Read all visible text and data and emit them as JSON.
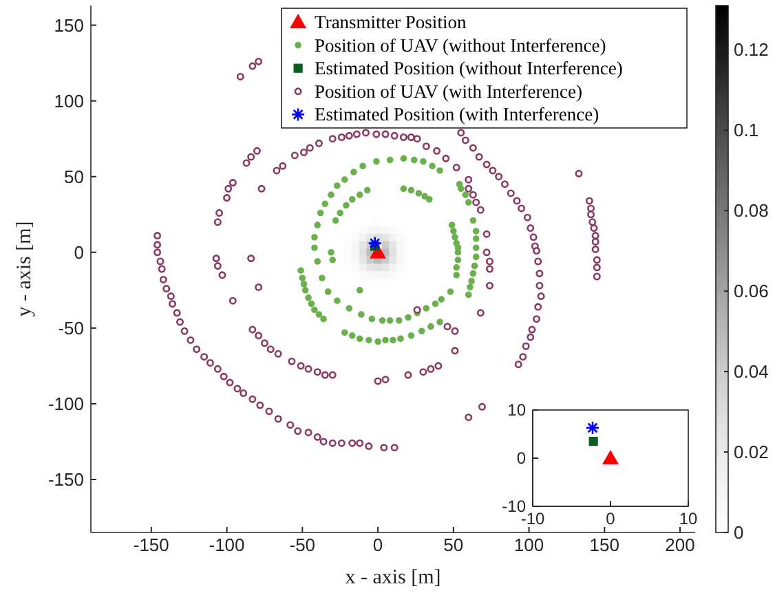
{
  "chart_data": [
    {
      "type": "heatmap",
      "categories": [
        null,
        null,
        null,
        null,
        null,
        null,
        null,
        null,
        null
      ],
      "y_categories": [
        null,
        null,
        null,
        null,
        null,
        null,
        null,
        null,
        null
      ],
      "clim": [
        0,
        0.131
      ],
      "cticks": [
        0,
        0.02,
        0.04,
        0.06,
        0.08,
        0.1,
        0.12
      ],
      "cells": [
        [
          0,
          0,
          0.001,
          0.002,
          0.003,
          0.002,
          0.001,
          0,
          0
        ],
        [
          0,
          0.002,
          0.005,
          0.009,
          0.01,
          0.009,
          0.005,
          0.002,
          0
        ],
        [
          0.001,
          0.005,
          0.013,
          0.023,
          0.027,
          0.023,
          0.013,
          0.005,
          0.001
        ],
        [
          0.002,
          0.009,
          0.023,
          0.041,
          null,
          0.041,
          0.023,
          0.009,
          0.002
        ],
        [
          0.003,
          0.01,
          0.027,
          0.049,
          null,
          0.049,
          0.027,
          0.01,
          0.003
        ],
        [
          0.002,
          0.009,
          0.023,
          0.041,
          0.049,
          0.041,
          0.023,
          0.009,
          0.002
        ],
        [
          0.001,
          0.005,
          0.013,
          0.023,
          0.027,
          0.023,
          0.013,
          0.005,
          0.001
        ],
        [
          0,
          0.002,
          0.005,
          0.009,
          0.01,
          0.009,
          0.005,
          0.002,
          0
        ],
        [
          0,
          0,
          0.001,
          0.002,
          0.003,
          0.002,
          0.001,
          0,
          0
        ]
      ]
    },
    {
      "type": "scatter",
      "xlabel": "x - axis [m]",
      "ylabel": "y - axis [m]",
      "xlim": [
        -190,
        210
      ],
      "ylim": [
        -185,
        163
      ],
      "xticks": [
        -150,
        -100,
        -50,
        0,
        50,
        100,
        150,
        200
      ],
      "yticks": [
        -150,
        -100,
        -50,
        0,
        50,
        100,
        150
      ],
      "legend": "top right",
      "series": [
        {
          "name": "Transmitter Position",
          "color": "#ff0000",
          "marker": "triangle",
          "x": [
            0
          ],
          "values": [
            0
          ]
        },
        {
          "name": "Position of UAV (without Interference)",
          "color": "#6ab04c",
          "marker": "circle",
          "x": [
            -42,
            -42,
            -40,
            -38,
            -35,
            -31,
            -27,
            -22,
            -16,
            -10,
            -1,
            8,
            17,
            24,
            30,
            36,
            41,
            -28,
            -25,
            -21,
            -17,
            -12,
            -7,
            17,
            22,
            27,
            31,
            34,
            49,
            50,
            51,
            52,
            53,
            -40,
            -37,
            -33,
            -27,
            -19,
            -11,
            -4,
            3,
            8,
            14,
            20,
            26,
            32,
            38,
            42,
            48,
            52,
            52,
            53,
            53,
            54,
            55,
            58,
            60,
            63,
            65,
            65,
            65,
            65,
            64,
            63,
            62,
            61,
            60,
            -22,
            -17,
            -12,
            -6,
            0,
            5,
            10,
            15,
            22,
            29,
            35,
            41,
            -51,
            -50,
            -49,
            -48,
            -46,
            -44,
            -42,
            -39,
            -36,
            -31,
            -30,
            -12
          ],
          "values": [
            3,
            10,
            18,
            26,
            32,
            38,
            44,
            48,
            53,
            57,
            60,
            61,
            62,
            61,
            60,
            57,
            54,
            21,
            26,
            31,
            35,
            38,
            41,
            42,
            41,
            39,
            37,
            35,
            18,
            14,
            10,
            6,
            3,
            -6,
            -17,
            -26,
            -32,
            -37,
            -41,
            -44,
            -45,
            -45,
            -45,
            -43,
            -40,
            -37,
            -34,
            -31,
            -26,
            -15,
            -10,
            -5,
            0,
            45,
            42,
            38,
            33,
            21,
            14,
            9,
            3,
            -3,
            -9,
            -14,
            -19,
            -23,
            -28,
            -53,
            -55,
            -57,
            -58,
            -59,
            -58,
            -58,
            -57,
            -55,
            -52,
            -49,
            -46,
            -12,
            -17,
            -21,
            -25,
            -30,
            -34,
            -38,
            -41,
            -44,
            0,
            -5,
            -25
          ]
        },
        {
          "name": "Estimated Position (without Interference)",
          "color": "#0b5e22",
          "marker": "square",
          "x": [
            -2
          ],
          "values": [
            4
          ]
        },
        {
          "name": "Position of UAV (with Interference)",
          "color": "#8b3a62",
          "marker": "circle",
          "x": [
            -146,
            -146,
            -146,
            -144,
            -143,
            -142,
            -140,
            -137,
            -136,
            -133,
            -131,
            -128,
            -124,
            -120,
            -115,
            -111,
            -106,
            -102,
            -98,
            -93,
            -89,
            -83,
            -78,
            -72,
            -66,
            -58,
            -53,
            -46,
            -40,
            -36,
            -30,
            -24,
            -17,
            -12,
            -6,
            4,
            11,
            -107,
            -106,
            -103,
            -96,
            -84,
            -79,
            -83,
            -79,
            -75,
            -71,
            -66,
            -57,
            -51,
            -46,
            -40,
            -35,
            -30,
            0,
            5,
            20,
            30,
            35,
            40,
            26,
            46,
            51,
            51,
            68,
            60,
            69,
            52,
            60,
            60,
            63,
            65,
            68,
            72,
            72,
            74,
            74,
            74,
            55,
            58,
            63,
            67,
            72,
            76,
            80,
            84,
            88,
            92,
            95,
            99,
            101,
            103,
            104,
            105,
            106,
            107,
            107,
            108,
            106,
            105,
            102,
            101,
            98,
            96,
            93,
            133,
            140,
            141,
            141,
            142,
            143,
            144,
            144,
            144,
            145,
            145,
            145,
            -77,
            -67,
            -63,
            -55,
            -49,
            -45,
            -39,
            -30,
            -24,
            -19,
            -14,
            -8,
            -1,
            5,
            11,
            17,
            22,
            26,
            32,
            39,
            45,
            -87,
            -84,
            -80,
            -96,
            -99,
            -100,
            -105,
            -106,
            -91,
            -83,
            -79
          ],
          "values": [
            11,
            5,
            0,
            -6,
            -11,
            -18,
            -24,
            -29,
            -34,
            -40,
            -46,
            -52,
            -58,
            -64,
            -69,
            -73,
            -77,
            -82,
            -86,
            -90,
            -93,
            -97,
            -101,
            -105,
            -110,
            -114,
            -118,
            -119,
            -122,
            -125,
            -126,
            -126,
            -126,
            -126,
            -128,
            -129,
            -129,
            -4,
            -9,
            -15,
            -32,
            -4,
            -23,
            -51,
            -55,
            -60,
            -64,
            -67,
            -72,
            -75,
            -77,
            -79,
            -81,
            -81,
            -85,
            -84,
            -81,
            -79,
            -77,
            -75,
            -38,
            -49,
            -52,
            -65,
            -40,
            -109,
            -102,
            56,
            48,
            42,
            38,
            33,
            28,
            12,
            0,
            -6,
            -11,
            -22,
            79,
            74,
            69,
            63,
            58,
            54,
            50,
            45,
            39,
            34,
            29,
            23,
            16,
            10,
            4,
            1,
            -6,
            -14,
            -22,
            -29,
            -36,
            -44,
            -51,
            -56,
            -62,
            -69,
            -74,
            52,
            34,
            29,
            25,
            20,
            16,
            11,
            7,
            2,
            -5,
            -10,
            -16,
            42,
            54,
            57,
            64,
            66,
            69,
            72,
            75,
            76,
            77,
            78,
            79,
            78,
            78,
            77,
            76,
            76,
            75,
            70,
            67,
            62,
            59,
            63,
            67,
            46,
            42,
            36,
            26,
            20,
            116,
            123,
            126
          ]
        },
        {
          "name": "Estimated Position (with Interference)",
          "color": "#0000ff",
          "marker": "cross",
          "x": [
            -2
          ],
          "values": [
            6
          ]
        }
      ]
    },
    {
      "type": "scatter",
      "xlim": [
        -10,
        10
      ],
      "ylim": [
        -10,
        10
      ],
      "xticks": [
        -10,
        0,
        10
      ],
      "yticks": [
        -10,
        0,
        10
      ],
      "series": [
        {
          "color": "#ff0000",
          "marker": "triangle",
          "x": [
            0
          ],
          "values": [
            0
          ]
        },
        {
          "color": "#0b5e22",
          "marker": "square",
          "x": [
            -2.2
          ],
          "values": [
            3.5
          ]
        },
        {
          "color": "#0000ff",
          "marker": "cross",
          "x": [
            -2.3
          ],
          "values": [
            6.3
          ]
        }
      ]
    }
  ]
}
